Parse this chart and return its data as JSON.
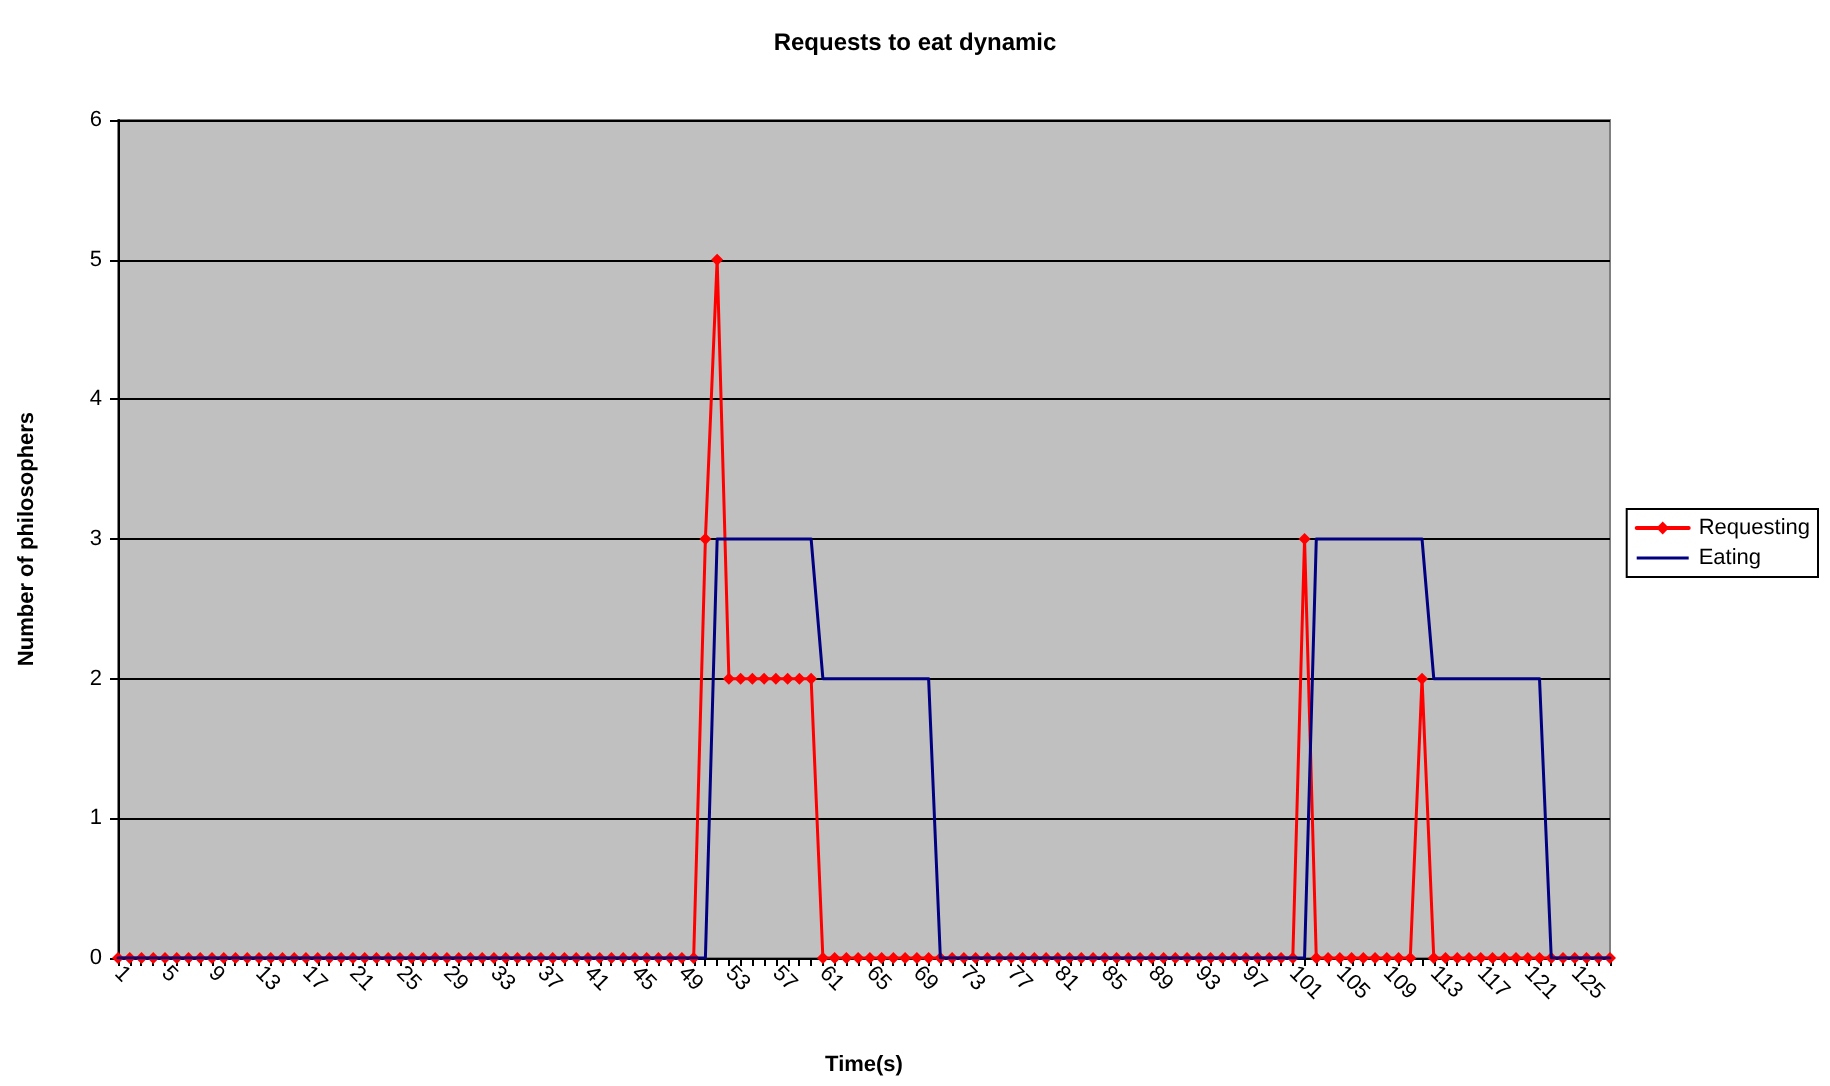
{
  "chart_data": {
    "type": "line",
    "title": "Requests to eat dynamic",
    "xlabel": "Time(s)",
    "ylabel": "Number of philosophers",
    "categories": [
      "1",
      null,
      null,
      null,
      "5",
      null,
      null,
      null,
      "9",
      null,
      null,
      null,
      "13",
      null,
      null,
      null,
      "17",
      null,
      null,
      null,
      "21",
      null,
      null,
      null,
      "25",
      null,
      null,
      null,
      "29",
      null,
      null,
      null,
      "33",
      null,
      null,
      null,
      "37",
      null,
      null,
      null,
      "41",
      null,
      null,
      null,
      "45",
      null,
      null,
      null,
      "49",
      null,
      null,
      null,
      "53",
      null,
      null,
      null,
      "57",
      null,
      null,
      null,
      "61",
      null,
      null,
      null,
      "65",
      null,
      null,
      null,
      "69",
      null,
      null,
      null,
      "73",
      null,
      null,
      null,
      "77",
      null,
      null,
      null,
      "81",
      null,
      null,
      null,
      "85",
      null,
      null,
      null,
      "89",
      null,
      null,
      null,
      "93",
      null,
      null,
      null,
      "97",
      null,
      null,
      null,
      "101",
      null,
      null,
      null,
      "105",
      null,
      null,
      null,
      "109",
      null,
      null,
      null,
      "113",
      null,
      null,
      null,
      "117",
      null,
      null,
      null,
      "121",
      null,
      null,
      null,
      "125",
      null,
      null,
      null
    ],
    "series": [
      {
        "name": "Requesting",
        "color": "#ff0000",
        "marker": "diamond",
        "values": [
          0,
          0,
          0,
          0,
          0,
          0,
          0,
          0,
          0,
          0,
          0,
          0,
          0,
          0,
          0,
          0,
          0,
          0,
          0,
          0,
          0,
          0,
          0,
          0,
          0,
          0,
          0,
          0,
          0,
          0,
          0,
          0,
          0,
          0,
          0,
          0,
          0,
          0,
          0,
          0,
          0,
          0,
          0,
          0,
          0,
          0,
          0,
          0,
          0,
          0,
          3,
          5,
          2,
          2,
          2,
          2,
          2,
          2,
          2,
          2,
          0,
          0,
          0,
          0,
          0,
          0,
          0,
          0,
          0,
          0,
          0,
          0,
          0,
          0,
          0,
          0,
          0,
          0,
          0,
          0,
          0,
          0,
          0,
          0,
          0,
          0,
          0,
          0,
          0,
          0,
          0,
          0,
          0,
          0,
          0,
          0,
          0,
          0,
          0,
          0,
          0,
          3,
          0,
          0,
          0,
          0,
          0,
          0,
          0,
          0,
          0,
          2,
          0,
          0,
          0,
          0,
          0,
          0,
          0,
          0,
          0,
          0,
          0,
          0,
          0,
          0,
          0,
          0
        ]
      },
      {
        "name": "Eating",
        "color": "#000080",
        "marker": "none",
        "values": [
          0,
          0,
          0,
          0,
          0,
          0,
          0,
          0,
          0,
          0,
          0,
          0,
          0,
          0,
          0,
          0,
          0,
          0,
          0,
          0,
          0,
          0,
          0,
          0,
          0,
          0,
          0,
          0,
          0,
          0,
          0,
          0,
          0,
          0,
          0,
          0,
          0,
          0,
          0,
          0,
          0,
          0,
          0,
          0,
          0,
          0,
          0,
          0,
          0,
          0,
          0,
          3,
          3,
          3,
          3,
          3,
          3,
          3,
          3,
          3,
          2,
          2,
          2,
          2,
          2,
          2,
          2,
          2,
          2,
          2,
          0,
          0,
          0,
          0,
          0,
          0,
          0,
          0,
          0,
          0,
          0,
          0,
          0,
          0,
          0,
          0,
          0,
          0,
          0,
          0,
          0,
          0,
          0,
          0,
          0,
          0,
          0,
          0,
          0,
          0,
          0,
          0,
          3,
          3,
          3,
          3,
          3,
          3,
          3,
          3,
          3,
          3,
          2,
          2,
          2,
          2,
          2,
          2,
          2,
          2,
          2,
          2,
          0,
          0,
          0,
          0,
          0,
          0
        ]
      }
    ],
    "ylim": [
      0,
      6
    ],
    "yticks": [
      0,
      1,
      2,
      3,
      4,
      5,
      6
    ],
    "grid": "y",
    "legend": "right"
  }
}
